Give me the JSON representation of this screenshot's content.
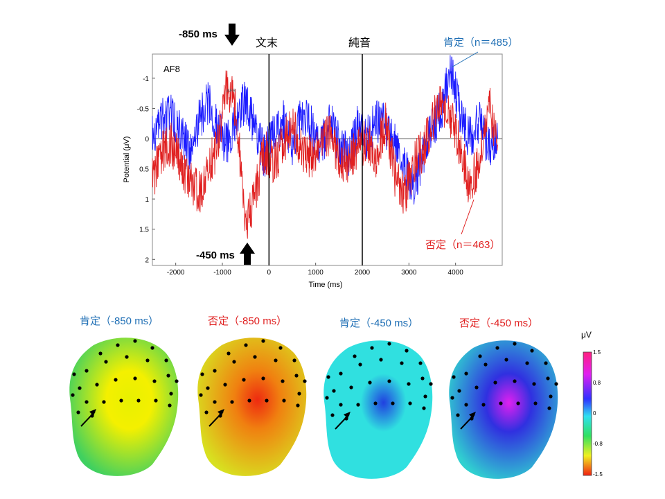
{
  "chart_data": {
    "type": "line",
    "channel": "AF8",
    "inner_channel_label": "AF8",
    "xlabel": "Time (ms)",
    "ylabel": "Potential (μV)",
    "xlim": [
      -2500,
      5000
    ],
    "ylim": [
      -1.4,
      2.1
    ],
    "y_inverted": true,
    "x_ticks": [
      "-2000",
      "-1000",
      "0",
      "1000",
      "2000",
      "3000",
      "4000"
    ],
    "x_tick_values": [
      -2000,
      -1000,
      0,
      1000,
      2000,
      3000,
      4000
    ],
    "y_ticks": [
      "-1",
      "-0.5",
      "0",
      "0.5",
      "1",
      "1.5",
      "2"
    ],
    "y_tick_values": [
      -1,
      -0.5,
      0,
      0.5,
      1,
      1.5,
      2
    ],
    "markers": [
      {
        "x": 0,
        "label": "文末"
      },
      {
        "x": 2000,
        "label": "純音"
      }
    ],
    "series": [
      {
        "name": "肯定（n＝485）",
        "color": "#1a1aff",
        "x": [
          -2500,
          -2300,
          -2100,
          -1900,
          -1700,
          -1500,
          -1300,
          -1100,
          -900,
          -700,
          -500,
          -300,
          -100,
          100,
          300,
          500,
          700,
          900,
          1100,
          1300,
          1500,
          1700,
          1900,
          2100,
          2300,
          2500,
          2700,
          2900,
          3100,
          3300,
          3500,
          3700,
          3900,
          4100,
          4300,
          4500,
          4700,
          4900
        ],
        "y": [
          0,
          -0.3,
          -0.4,
          -0.1,
          0.2,
          -0.3,
          -0.6,
          -0.2,
          0.1,
          -0.4,
          -0.6,
          -0.2,
          0.3,
          -0.1,
          -0.3,
          0.1,
          -0.4,
          -0.2,
          0.2,
          -0.3,
          0.1,
          0.3,
          -0.2,
          0,
          -0.3,
          -0.2,
          0.1,
          0.5,
          0.8,
          0.3,
          -0.2,
          -0.5,
          -1.2,
          -0.4,
          0,
          -0.3,
          0.1,
          0
        ]
      },
      {
        "name": "否定（n＝463）",
        "color": "#e02020",
        "x": [
          -2500,
          -2300,
          -2100,
          -1900,
          -1700,
          -1500,
          -1300,
          -1100,
          -900,
          -700,
          -500,
          -300,
          -100,
          100,
          300,
          500,
          700,
          900,
          1100,
          1300,
          1500,
          1700,
          1900,
          2100,
          2300,
          2500,
          2700,
          2900,
          3100,
          3300,
          3500,
          3700,
          3900,
          4100,
          4300,
          4500,
          4700,
          4900
        ],
        "y": [
          0.7,
          0.2,
          0.1,
          0.4,
          0.7,
          0.9,
          0.5,
          0.1,
          -0.9,
          -0.5,
          1.5,
          0.9,
          0.2,
          0.4,
          0.1,
          -0.2,
          0.2,
          0.3,
          0.1,
          -0.1,
          0.3,
          0.4,
          0.2,
          0,
          0.3,
          -0.3,
          0.6,
          1,
          0.4,
          0.2,
          -0.3,
          -0.6,
          -0.3,
          0.1,
          0.8,
          0.4,
          -0.6,
          0.1
        ]
      }
    ]
  },
  "annotations": {
    "top_left_time": "-850 ms",
    "bottom_time": "-450 ms",
    "blue_series_label": "肯定（n＝485）",
    "red_series_label": "否定（n＝463）",
    "marker1": "文末",
    "marker2": "純音"
  },
  "topomaps": [
    {
      "label": "肯定（-850 ms）",
      "label_color": "#1f6fb5",
      "base": "#3fd060",
      "hot": "#f4f000",
      "spot": "#e8f000"
    },
    {
      "label": "否定（-850 ms）",
      "label_color": "#e02020",
      "base": "#d8e020",
      "hot": "#f08010",
      "spot": "#ee2a10"
    },
    {
      "label": "肯定（-450 ms）",
      "label_color": "#1f6fb5",
      "base": "#30e0e0",
      "hot": "#30e0e0",
      "spot": "#2040e0"
    },
    {
      "label": "否定（-450 ms）",
      "label_color": "#e02020",
      "base": "#30d0d0",
      "hot": "#3030e0",
      "spot": "#e020f0"
    }
  ],
  "colorbar": {
    "unit": "μV",
    "ticks": [
      "1.5",
      "0.8",
      "0",
      "-0.8",
      "-1.5"
    ],
    "colors": [
      "#ff2080",
      "#e020f0",
      "#3030ff",
      "#30e0f0",
      "#30e060",
      "#f0f020",
      "#f02010"
    ]
  }
}
